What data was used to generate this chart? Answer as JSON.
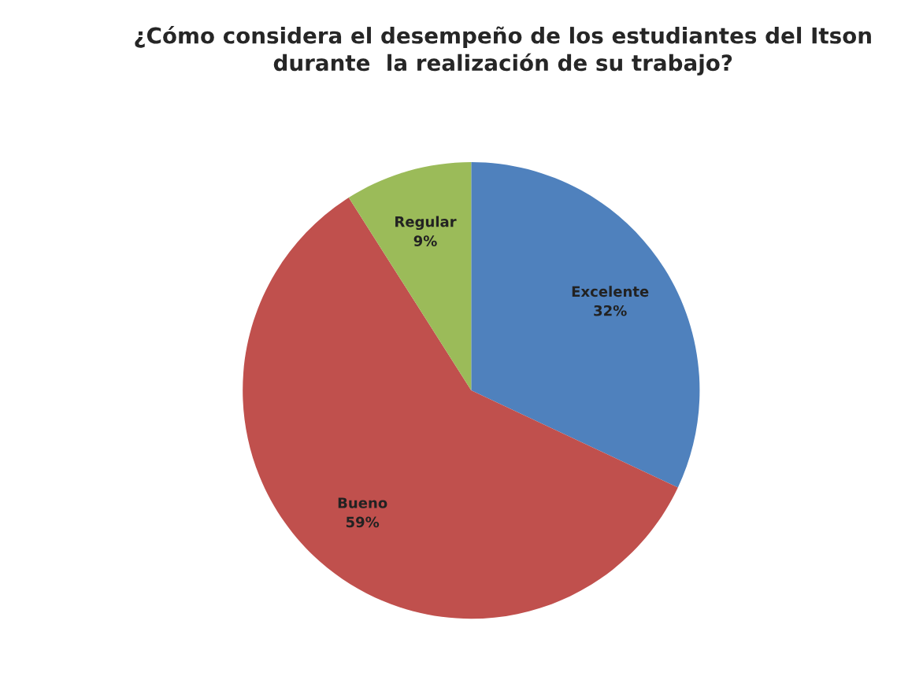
{
  "chart_data": {
    "type": "pie",
    "title": "¿Cómo considera el desempeño de los estudiantes del Itson\ndurante  la realización de su trabajo?",
    "categories": [
      "Excelente",
      "Bueno",
      "Regular"
    ],
    "values": [
      32,
      59,
      9
    ],
    "colors": [
      "#4f81bd",
      "#c0504d",
      "#9bbb59"
    ],
    "value_labels": [
      "32%",
      "59%",
      "9%"
    ]
  }
}
